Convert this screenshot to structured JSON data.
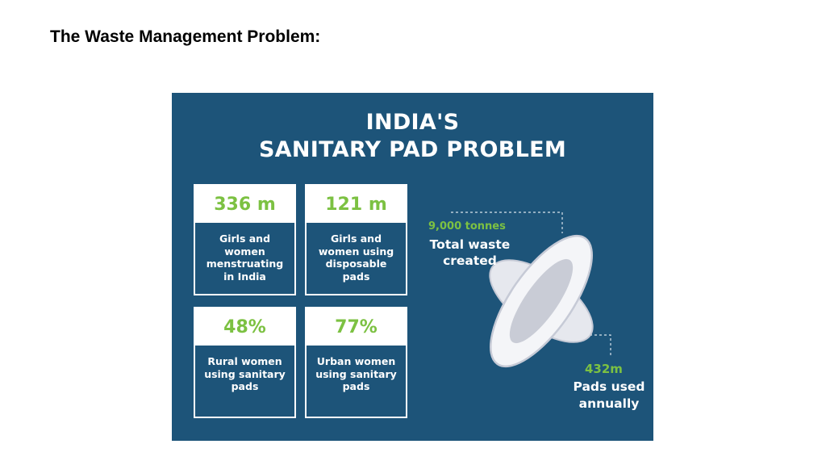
{
  "slide": {
    "title": "The Waste Management Problem:"
  },
  "infographic": {
    "heading_line1": "INDIA'S",
    "heading_line2": "SANITARY PAD PROBLEM",
    "colors": {
      "background": "#1d5479",
      "accent": "#7cc142",
      "text": "#ffffff"
    },
    "cards": [
      {
        "value": "336 m",
        "label_lines": [
          "Girls and",
          "women",
          "menstruating",
          "in India"
        ]
      },
      {
        "value": "121 m",
        "label_lines": [
          "Girls and",
          "women using",
          "disposable",
          "pads"
        ]
      },
      {
        "value": "48%",
        "label_lines": [
          "Rural women",
          "using sanitary",
          "pads"
        ]
      },
      {
        "value": "77%",
        "label_lines": [
          "Urban women",
          "using sanitary",
          "pads"
        ]
      }
    ],
    "waste": {
      "figure": "9,000 tonnes",
      "label_line1": "Total waste",
      "label_line2": "created"
    },
    "pads": {
      "figure": "432m",
      "label_line1": "Pads used",
      "label_line2": "annually"
    },
    "illustration_icon": "sanitary-pad-icon"
  }
}
